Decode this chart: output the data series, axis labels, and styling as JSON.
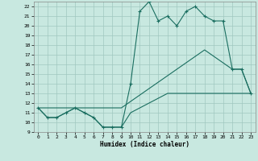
{
  "title": "",
  "xlabel": "Humidex (Indice chaleur)",
  "xlim": [
    -0.5,
    23.5
  ],
  "ylim": [
    9,
    22.5
  ],
  "xticks": [
    0,
    1,
    2,
    3,
    4,
    5,
    6,
    7,
    8,
    9,
    10,
    11,
    12,
    13,
    14,
    15,
    16,
    17,
    18,
    19,
    20,
    21,
    22,
    23
  ],
  "yticks": [
    9,
    10,
    11,
    12,
    13,
    14,
    15,
    16,
    17,
    18,
    19,
    20,
    21,
    22
  ],
  "bg_color": "#c8e8e0",
  "grid_color": "#a0c8c0",
  "line_color": "#1a6e60",
  "series1_x": [
    0,
    1,
    2,
    3,
    4,
    5,
    6,
    7,
    8,
    9,
    10,
    11,
    12,
    13,
    14,
    15,
    16,
    17,
    18,
    19,
    20,
    21,
    22,
    23
  ],
  "series1_y": [
    11.5,
    10.5,
    10.5,
    11.0,
    11.5,
    11.0,
    10.5,
    9.5,
    9.5,
    9.5,
    11.0,
    11.5,
    12.0,
    12.5,
    13.0,
    13.0,
    13.0,
    13.0,
    13.0,
    13.0,
    13.0,
    13.0,
    13.0,
    13.0
  ],
  "series2_x": [
    0,
    1,
    2,
    3,
    4,
    5,
    6,
    7,
    8,
    9,
    10,
    11,
    12,
    13,
    14,
    15,
    16,
    17,
    18,
    19,
    20,
    21,
    22,
    23
  ],
  "series2_y": [
    11.5,
    10.5,
    10.5,
    11.0,
    11.5,
    11.0,
    10.5,
    9.5,
    9.5,
    9.5,
    14.0,
    21.5,
    22.5,
    20.5,
    21.0,
    20.0,
    21.5,
    22.0,
    21.0,
    20.5,
    20.5,
    15.5,
    15.5,
    13.0
  ],
  "series3_x": [
    0,
    9,
    18,
    21,
    22,
    23
  ],
  "series3_y": [
    11.5,
    11.5,
    17.5,
    15.5,
    15.5,
    13.0
  ]
}
